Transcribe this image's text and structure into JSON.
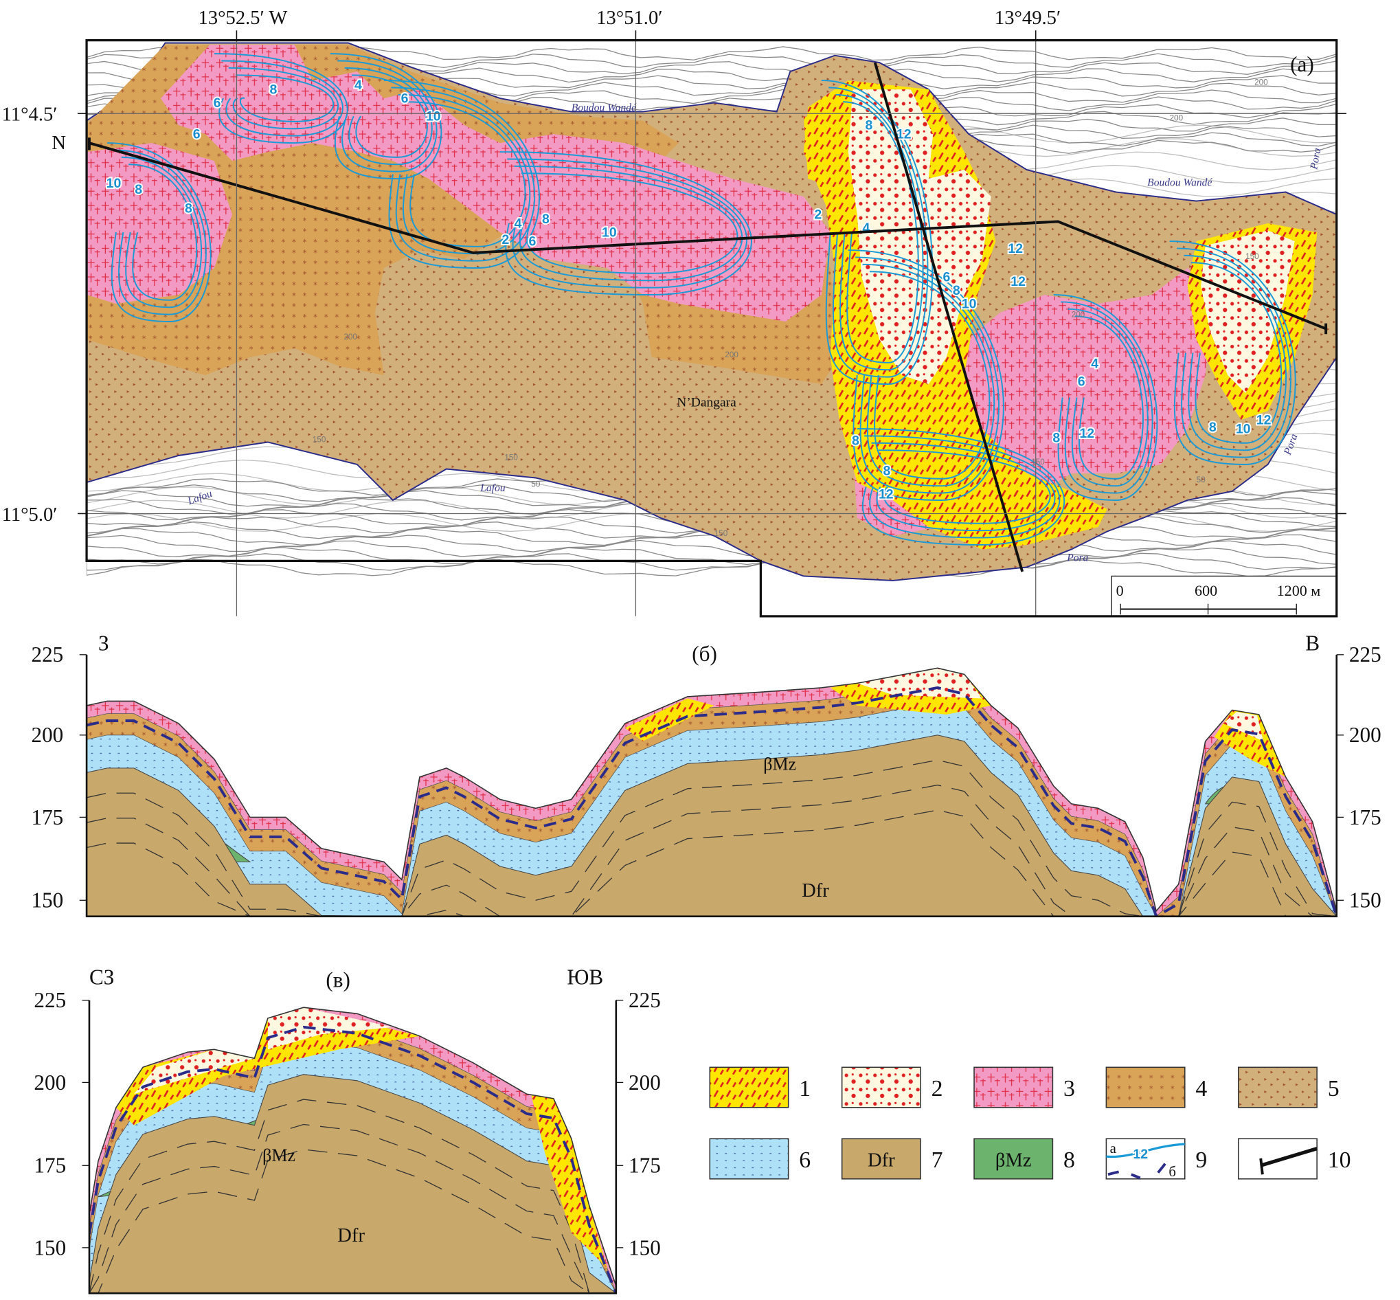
{
  "map": {
    "panel_label": "(a)",
    "lon_labels": [
      "13°52.5′ W",
      "13°51.0′",
      "13°49.5′"
    ],
    "lat_labels": [
      "11°4.5′",
      "N",
      "11°5.0′"
    ],
    "places": {
      "boudou_wande": "Boudou Wandé",
      "ndangara": "N’Dangara",
      "lafou": "Lafou",
      "pora": "Pora"
    },
    "elevation_labels": [
      "200",
      "200",
      "200",
      "200",
      "200",
      "150",
      "150",
      "150",
      "150",
      "50",
      "50",
      "150"
    ],
    "isoline_labels": [
      "8",
      "4",
      "6",
      "6",
      "10",
      "6",
      "10",
      "8",
      "8",
      "12",
      "8",
      "2",
      "4",
      "4",
      "2",
      "8",
      "6",
      "10",
      "12",
      "12",
      "6",
      "8",
      "10",
      "4",
      "6",
      "8",
      "12",
      "8",
      "10",
      "12",
      "8",
      "8",
      "12"
    ],
    "scale_bar": {
      "ticks": [
        "0",
        "600",
        "1200 м"
      ]
    }
  },
  "section_b": {
    "panel_label": "(б)",
    "left_dir": "З",
    "right_dir": "В",
    "y_ticks": [
      "225",
      "200",
      "175",
      "150"
    ],
    "unit_labels": {
      "basalt": "βMz",
      "basement": "Dfr"
    }
  },
  "section_v": {
    "panel_label": "(в)",
    "left_dir": "СЗ",
    "right_dir": "ЮВ",
    "y_ticks": [
      "225",
      "200",
      "175",
      "150"
    ],
    "unit_labels": {
      "basalt": "βMz",
      "basement": "Dfr"
    }
  },
  "legend": {
    "items": [
      {
        "num": "1",
        "fill": "#ffe600"
      },
      {
        "num": "2",
        "fill": "#fff8e0"
      },
      {
        "num": "3",
        "fill": "#f29ac3"
      },
      {
        "num": "4",
        "fill": "#d9a458"
      },
      {
        "num": "5",
        "fill": "#d2b07c"
      },
      {
        "num": "6",
        "fill": "#aee0f7"
      },
      {
        "num": "7",
        "fill": "#c9a86c",
        "text": "Dfr"
      },
      {
        "num": "8",
        "fill": "#6cb46e",
        "text": "βMz"
      },
      {
        "num": "9",
        "text_a": "а",
        "text_b": "б",
        "sample": "12"
      },
      {
        "num": "10"
      }
    ]
  },
  "colors": {
    "isoline": "#1a9ad6",
    "boundary": "#2b2b8a",
    "profile_line": "#111111",
    "contour": "#8a8a8a"
  }
}
